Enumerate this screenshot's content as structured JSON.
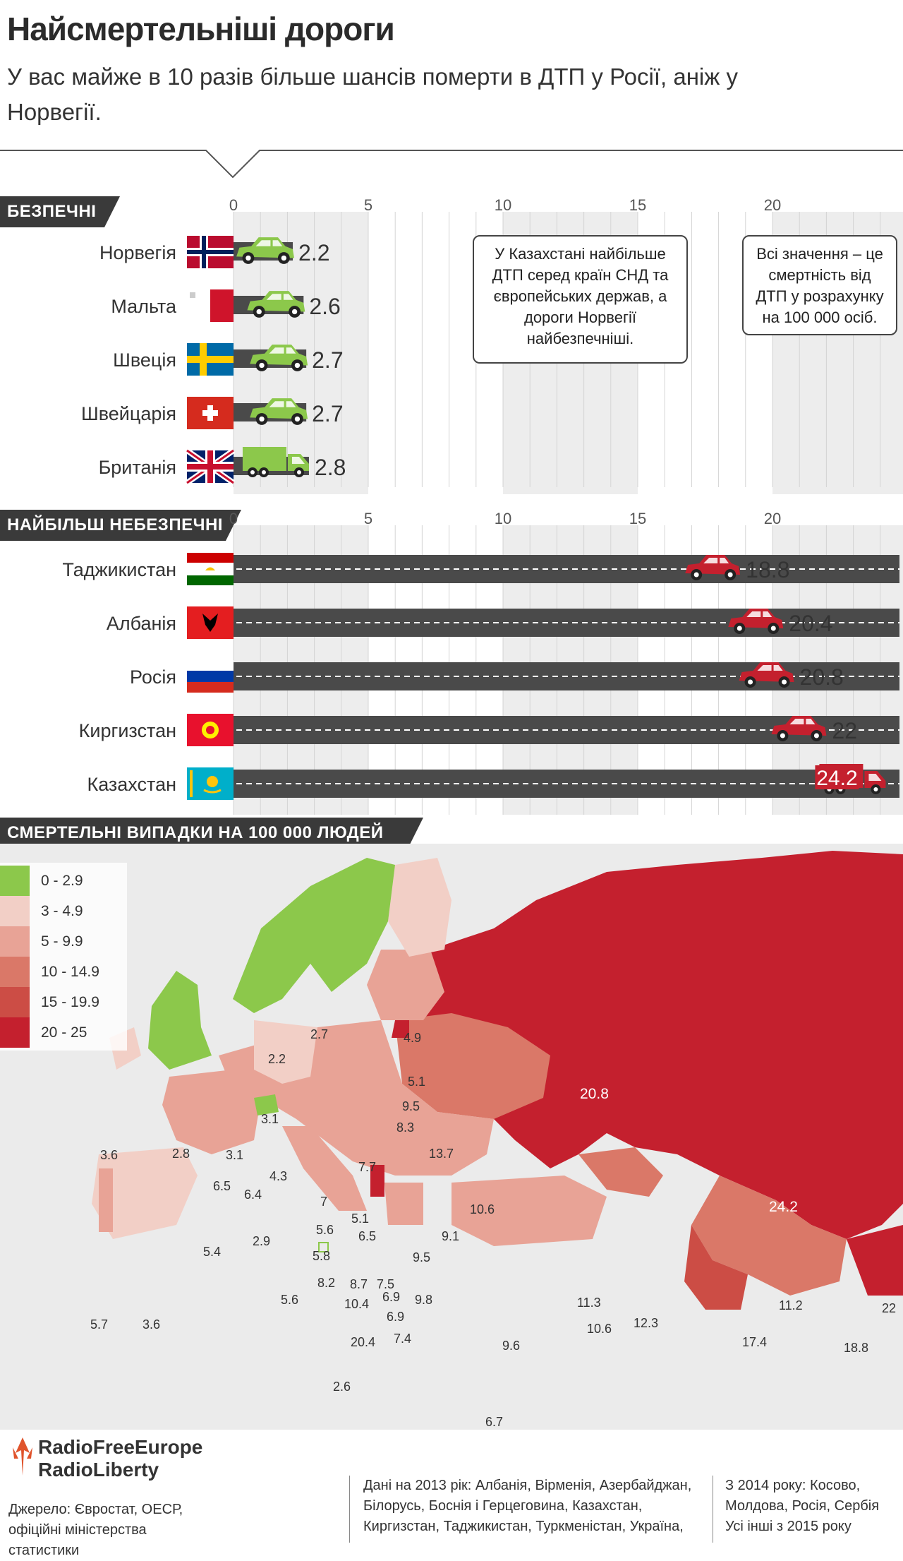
{
  "title": "Найсмертельніші дороги",
  "subtitle": "У вас майже в 10 разів більше шансів померти в ДТП у Росії, аніж у Норвегії.",
  "chart_data": [
    {
      "type": "bar",
      "section_label": "БЕЗПЕЧНІ",
      "categories": [
        "Норвегія",
        "Мальта",
        "Швеція",
        "Швейцарія",
        "Британія"
      ],
      "values": [
        2.2,
        2.6,
        2.7,
        2.7,
        2.8
      ],
      "value_labels": [
        "2.2",
        "2.6",
        "2.7",
        "2.7",
        "2.8"
      ],
      "icons": [
        "car-icon",
        "car-icon",
        "car-icon",
        "car-icon",
        "truck-icon"
      ],
      "xlim": [
        0,
        25
      ],
      "ticks": [
        "0",
        "5",
        "10",
        "15",
        "20"
      ],
      "bar_color": "#8cc84b"
    },
    {
      "type": "bar",
      "section_label": "НАЙБІЛЬШ НЕБЕЗПЕЧНІ",
      "categories": [
        "Таджикистан",
        "Албанія",
        "Росія",
        "Киргизстан",
        "Казахстан"
      ],
      "values": [
        18.8,
        20.4,
        20.8,
        22,
        24.2
      ],
      "value_labels": [
        "18.8",
        "20.4",
        "20.8",
        "22",
        "24.2"
      ],
      "icons": [
        "car-icon",
        "car-icon",
        "car-icon",
        "car-icon",
        "truck-icon"
      ],
      "xlim": [
        0,
        25
      ],
      "ticks": [
        "0",
        "5",
        "10",
        "15",
        "20"
      ],
      "bar_color": "#c4202e"
    }
  ],
  "notes": {
    "kazakhstan": "У Казахстані найбільше ДТП серед країн СНД та європейських держав, а дороги Норвегії найбезпечніші.",
    "values": "Всі значення – це смертність від ДТП у розрахунку на 100 000 осіб."
  },
  "map": {
    "section_label": "СМЕРТЕЛЬНІ ВИПАДКИ НА 100 000 ЛЮДЕЙ",
    "legend": [
      {
        "label": "0 - 2.9",
        "color": "#8cc84b"
      },
      {
        "label": "3 - 4.9",
        "color": "#f2cfc6"
      },
      {
        "label": "5 - 9.9",
        "color": "#e8a396"
      },
      {
        "label": "10 - 14.9",
        "color": "#da7868"
      },
      {
        "label": "15 - 19.9",
        "color": "#cc4d45"
      },
      {
        "label": "20 - 25",
        "color": "#c4202e"
      }
    ],
    "labels": [
      "2.2",
      "2.7",
      "4.9",
      "5.1",
      "9.5",
      "8.3",
      "3.1",
      "3.6",
      "2.8",
      "3.1",
      "4.3",
      "6.5",
      "6.4",
      "7.7",
      "13.7",
      "7",
      "5.1",
      "5.6",
      "6.5",
      "9.1",
      "10.6",
      "5.4",
      "2.9",
      "5.8",
      "9.5",
      "8.2",
      "8.7",
      "7.5",
      "6.9",
      "9.8",
      "5.6",
      "10.4",
      "6.9",
      "5.7",
      "3.6",
      "20.4",
      "7.4",
      "11.3",
      "10.6",
      "12.3",
      "9.6",
      "2.6",
      "6.7",
      "20.8",
      "24.2",
      "11.2",
      "17.4",
      "22",
      "18.8"
    ]
  },
  "footer": {
    "logo_line1": "RadioFreeEurope",
    "logo_line2": "RadioLiberty",
    "source": "Джерело: Євростат, OECР, офіційні міністерства статистики",
    "data_note": "Дані на 2013 рік: Албанія, Вірменія, Азербайджан, Білорусь, Боснія і Герцеговина, Казахстан, Киргизстан, Таджикистан, Туркменістан, Україна,",
    "year_note": "З 2014 року: Косово, Молдова, Росія, Сербія Усі інші з 2015 року"
  }
}
